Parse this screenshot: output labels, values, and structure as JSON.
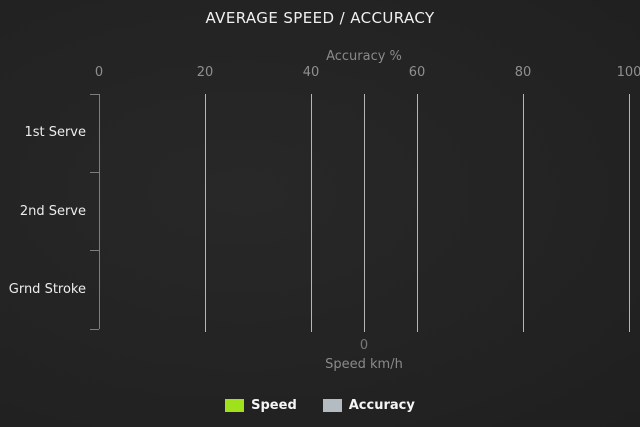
{
  "chart": {
    "title": "AVERAGE SPEED / ACCURACY",
    "top_axis": {
      "label": "Accuracy %",
      "ticks": [
        "0",
        "20",
        "40",
        "60",
        "80",
        "100"
      ],
      "range": [
        0,
        100
      ]
    },
    "bottom_axis": {
      "label": "Speed km/h",
      "ticks": [
        "0"
      ]
    },
    "categories": [
      "1st Serve",
      "2nd Serve",
      "Grnd Stroke"
    ],
    "legend": {
      "items": [
        {
          "label": "Speed",
          "color": "#9fe11a"
        },
        {
          "label": "Accuracy",
          "color": "#b4bcc2"
        }
      ]
    },
    "colors": {
      "background": "#222222",
      "gridline": "#b5b5b5",
      "axis_line": "#7d7d7d",
      "axis_text": "#8a8a8a",
      "category_text": "#ececec",
      "title_text": "#f0f0f0",
      "speed_green": "#9fe11a",
      "accuracy_gray": "#b4bcc2"
    }
  },
  "chart_data": {
    "type": "bar",
    "orientation": "horizontal",
    "title": "AVERAGE SPEED / ACCURACY",
    "categories": [
      "1st Serve",
      "2nd Serve",
      "Grnd Stroke"
    ],
    "series": [
      {
        "name": "Speed",
        "axis": "bottom",
        "unit": "km/h",
        "color": "#9fe11a",
        "values": [
          0,
          0,
          0
        ]
      },
      {
        "name": "Accuracy",
        "axis": "top",
        "unit": "%",
        "color": "#b4bcc2",
        "values": [
          0,
          0,
          0
        ]
      }
    ],
    "top_axis_label": "Accuracy %",
    "top_axis_ticks": [
      0,
      20,
      40,
      60,
      80,
      100
    ],
    "top_axis_range": [
      0,
      100
    ],
    "bottom_axis_label": "Speed km/h",
    "bottom_axis_ticks": [
      0
    ],
    "grid": true,
    "legend_position": "bottom",
    "legend": [
      "Speed",
      "Accuracy"
    ]
  }
}
